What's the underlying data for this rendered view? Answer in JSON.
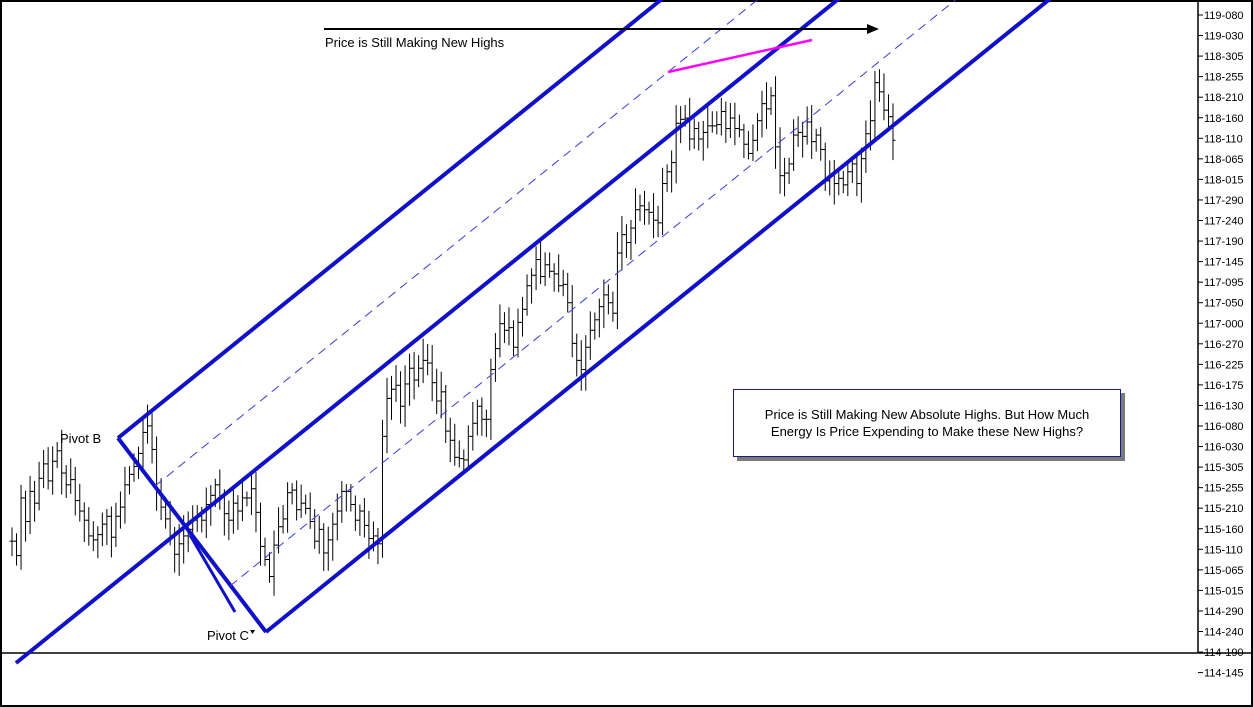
{
  "annotations": {
    "top_arrow_label": "Price is Still Making New Highs",
    "pivot_b": "Pivot B",
    "pivot_c": "Pivot C",
    "note_line1": "Price is Still Making New Absolute Highs. But How Much",
    "note_line2": "Energy Is Price Expending to Make these New Highs?"
  },
  "colors": {
    "channel": "#1010c8",
    "dashed": "#3a3ae0",
    "divergence": "#ff00ff",
    "bars": "#000000",
    "arrow": "#000000"
  },
  "chart_data": {
    "type": "ohlc-bar",
    "y_axis_ticks": [
      "119-080",
      "119-030",
      "118-305",
      "118-255",
      "118-210",
      "118-160",
      "118-110",
      "118-065",
      "118-015",
      "117-290",
      "117-240",
      "117-190",
      "117-145",
      "117-095",
      "117-050",
      "117-000",
      "116-270",
      "116-225",
      "116-175",
      "116-130",
      "116-080",
      "116-030",
      "115-305",
      "115-255",
      "115-210",
      "115-160",
      "115-110",
      "115-065",
      "115-015",
      "114-290",
      "114-240",
      "114-190",
      "114-145"
    ],
    "y_axis_side": "right",
    "grid": false,
    "legend": "none",
    "close_path_ticks": [
      9.3,
      8.2,
      12.6,
      10.8,
      13.1,
      12.2,
      14.1,
      15.2,
      13.9,
      15.4,
      16.2,
      14.5,
      13.6,
      14.0,
      12.4,
      11.6,
      10.9,
      9.7,
      9.4,
      9.8,
      10.6,
      11.2,
      9.6,
      11.2,
      11.9,
      13.6,
      14.4,
      15.0,
      16.0,
      17.6,
      18.1,
      16.3,
      13.1,
      11.9,
      11.0,
      9.6,
      8.3,
      9.1,
      9.7,
      10.2,
      10.9,
      11.2,
      10.9,
      12.1,
      12.8,
      13.6,
      12.7,
      11.4,
      10.9,
      12.2,
      11.6,
      12.6,
      12.6,
      13.3,
      11.5,
      8.9,
      7.9,
      6.6,
      9.0,
      10.4,
      11.0,
      13.0,
      13.2,
      11.7,
      12.2,
      11.8,
      10.8,
      9.3,
      10.2,
      8.4,
      9.4,
      10.6,
      11.6,
      13.1,
      13.1,
      12.1,
      10.9,
      11.6,
      10.5,
      9.5,
      9.7,
      9.1,
      17.3,
      20.2,
      20.9,
      21.2,
      19.6,
      21.3,
      22.5,
      21.6,
      22.5,
      23.1,
      22.9,
      21.4,
      20.0,
      20.7,
      17.7,
      17.0,
      15.7,
      15.6,
      15.5,
      17.3,
      18.3,
      19.6,
      18.6,
      18.6,
      22.4,
      24.0,
      25.9,
      25.4,
      25.6,
      24.1,
      26.0,
      27.0,
      28.8,
      29.6,
      30.8,
      29.5,
      30.4,
      29.9,
      29.7,
      28.8,
      28.9,
      27.5,
      24.4,
      23.1,
      22.4,
      24.1,
      25.4,
      26.2,
      27.2,
      28.1,
      27.5,
      26.7,
      31.3,
      32.7,
      32.1,
      33.2,
      34.6,
      34.9,
      34.6,
      34.4,
      33.8,
      33.6,
      36.6,
      37.5,
      38.2,
      41.2,
      41.5,
      41.6,
      40.0,
      40.8,
      40.0,
      40.5,
      41.0,
      41.0,
      41.1,
      42.1,
      40.8,
      41.6,
      40.8,
      40.7,
      39.6,
      38.9,
      39.9,
      41.4,
      42.7,
      42.3,
      43.3,
      39.4,
      37.2,
      37.4,
      38.1,
      40.3,
      40.5,
      40.2,
      41.3,
      39.8,
      40.3,
      39.2,
      36.8,
      37.3,
      36.6,
      37.0,
      36.5,
      37.5,
      38.1,
      36.6,
      38.5,
      40.4,
      41.4,
      44.3,
      43.6,
      42.2,
      41.7,
      39.9
    ]
  }
}
